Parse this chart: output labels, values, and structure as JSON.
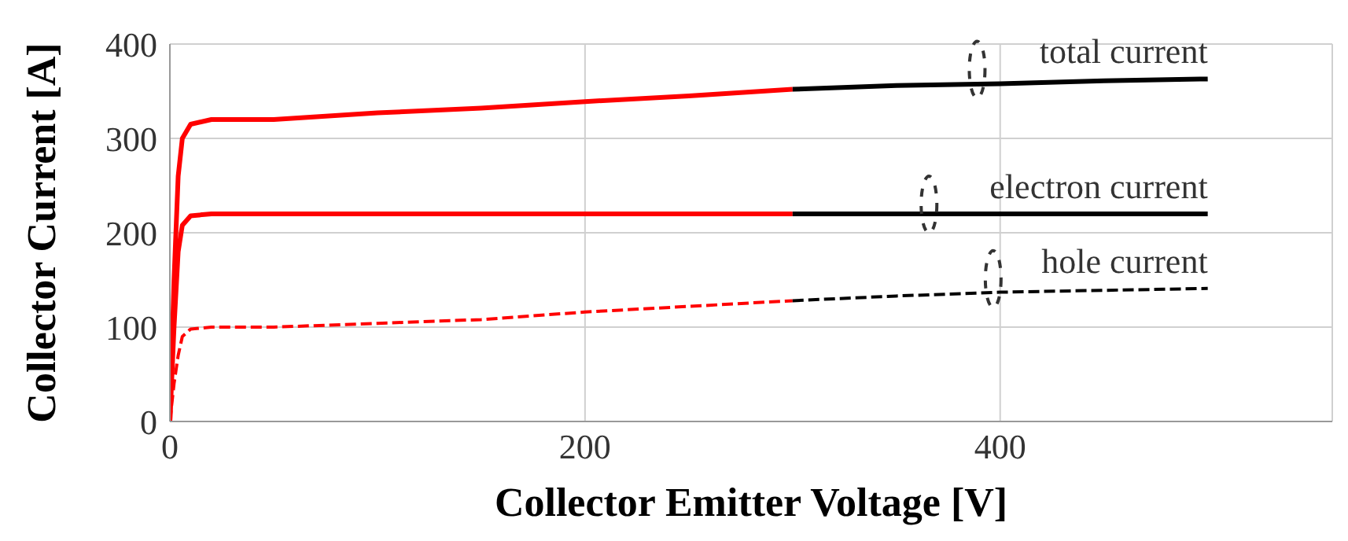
{
  "chart_data": {
    "type": "line",
    "xlabel": "Collector Emitter Voltage [V]",
    "ylabel": "Collector Current [A]",
    "xlim": [
      0,
      560
    ],
    "xticks": [
      0,
      200,
      400
    ],
    "ylim": [
      0,
      400
    ],
    "yticks": [
      0,
      100,
      200,
      300,
      400
    ],
    "grid": true,
    "legend": false,
    "marker": "none",
    "series": [
      {
        "color": "#ff0000",
        "x": [
          0,
          2,
          4,
          6,
          10,
          20,
          50,
          100,
          150,
          200,
          250,
          300
        ],
        "values": [
          0,
          150,
          260,
          300,
          315,
          320,
          320,
          327,
          332,
          339,
          345,
          352
        ]
      },
      {
        "name": "total current",
        "color": "#000000",
        "x": [
          300,
          350,
          400,
          450,
          500
        ],
        "values": [
          352,
          356,
          358,
          361,
          363
        ]
      },
      {
        "color": "#ff0000",
        "x": [
          0,
          2,
          4,
          6,
          10,
          20,
          300
        ],
        "values": [
          0,
          100,
          180,
          208,
          218,
          220,
          220
        ]
      },
      {
        "name": "electron current",
        "color": "#000000",
        "x": [
          300,
          500
        ],
        "values": [
          220,
          220
        ]
      },
      {
        "color": "#ff0000",
        "line_style": "dashed",
        "x": [
          0,
          2,
          4,
          6,
          10,
          20,
          50,
          100,
          150,
          200,
          250,
          300
        ],
        "values": [
          0,
          40,
          70,
          90,
          98,
          100,
          100,
          104,
          108,
          116,
          122,
          128
        ]
      },
      {
        "name": "hole current",
        "color": "#000000",
        "line_style": "dashed",
        "x": [
          300,
          350,
          400,
          450,
          500
        ],
        "values": [
          128,
          133,
          137,
          139,
          141
        ]
      }
    ]
  }
}
